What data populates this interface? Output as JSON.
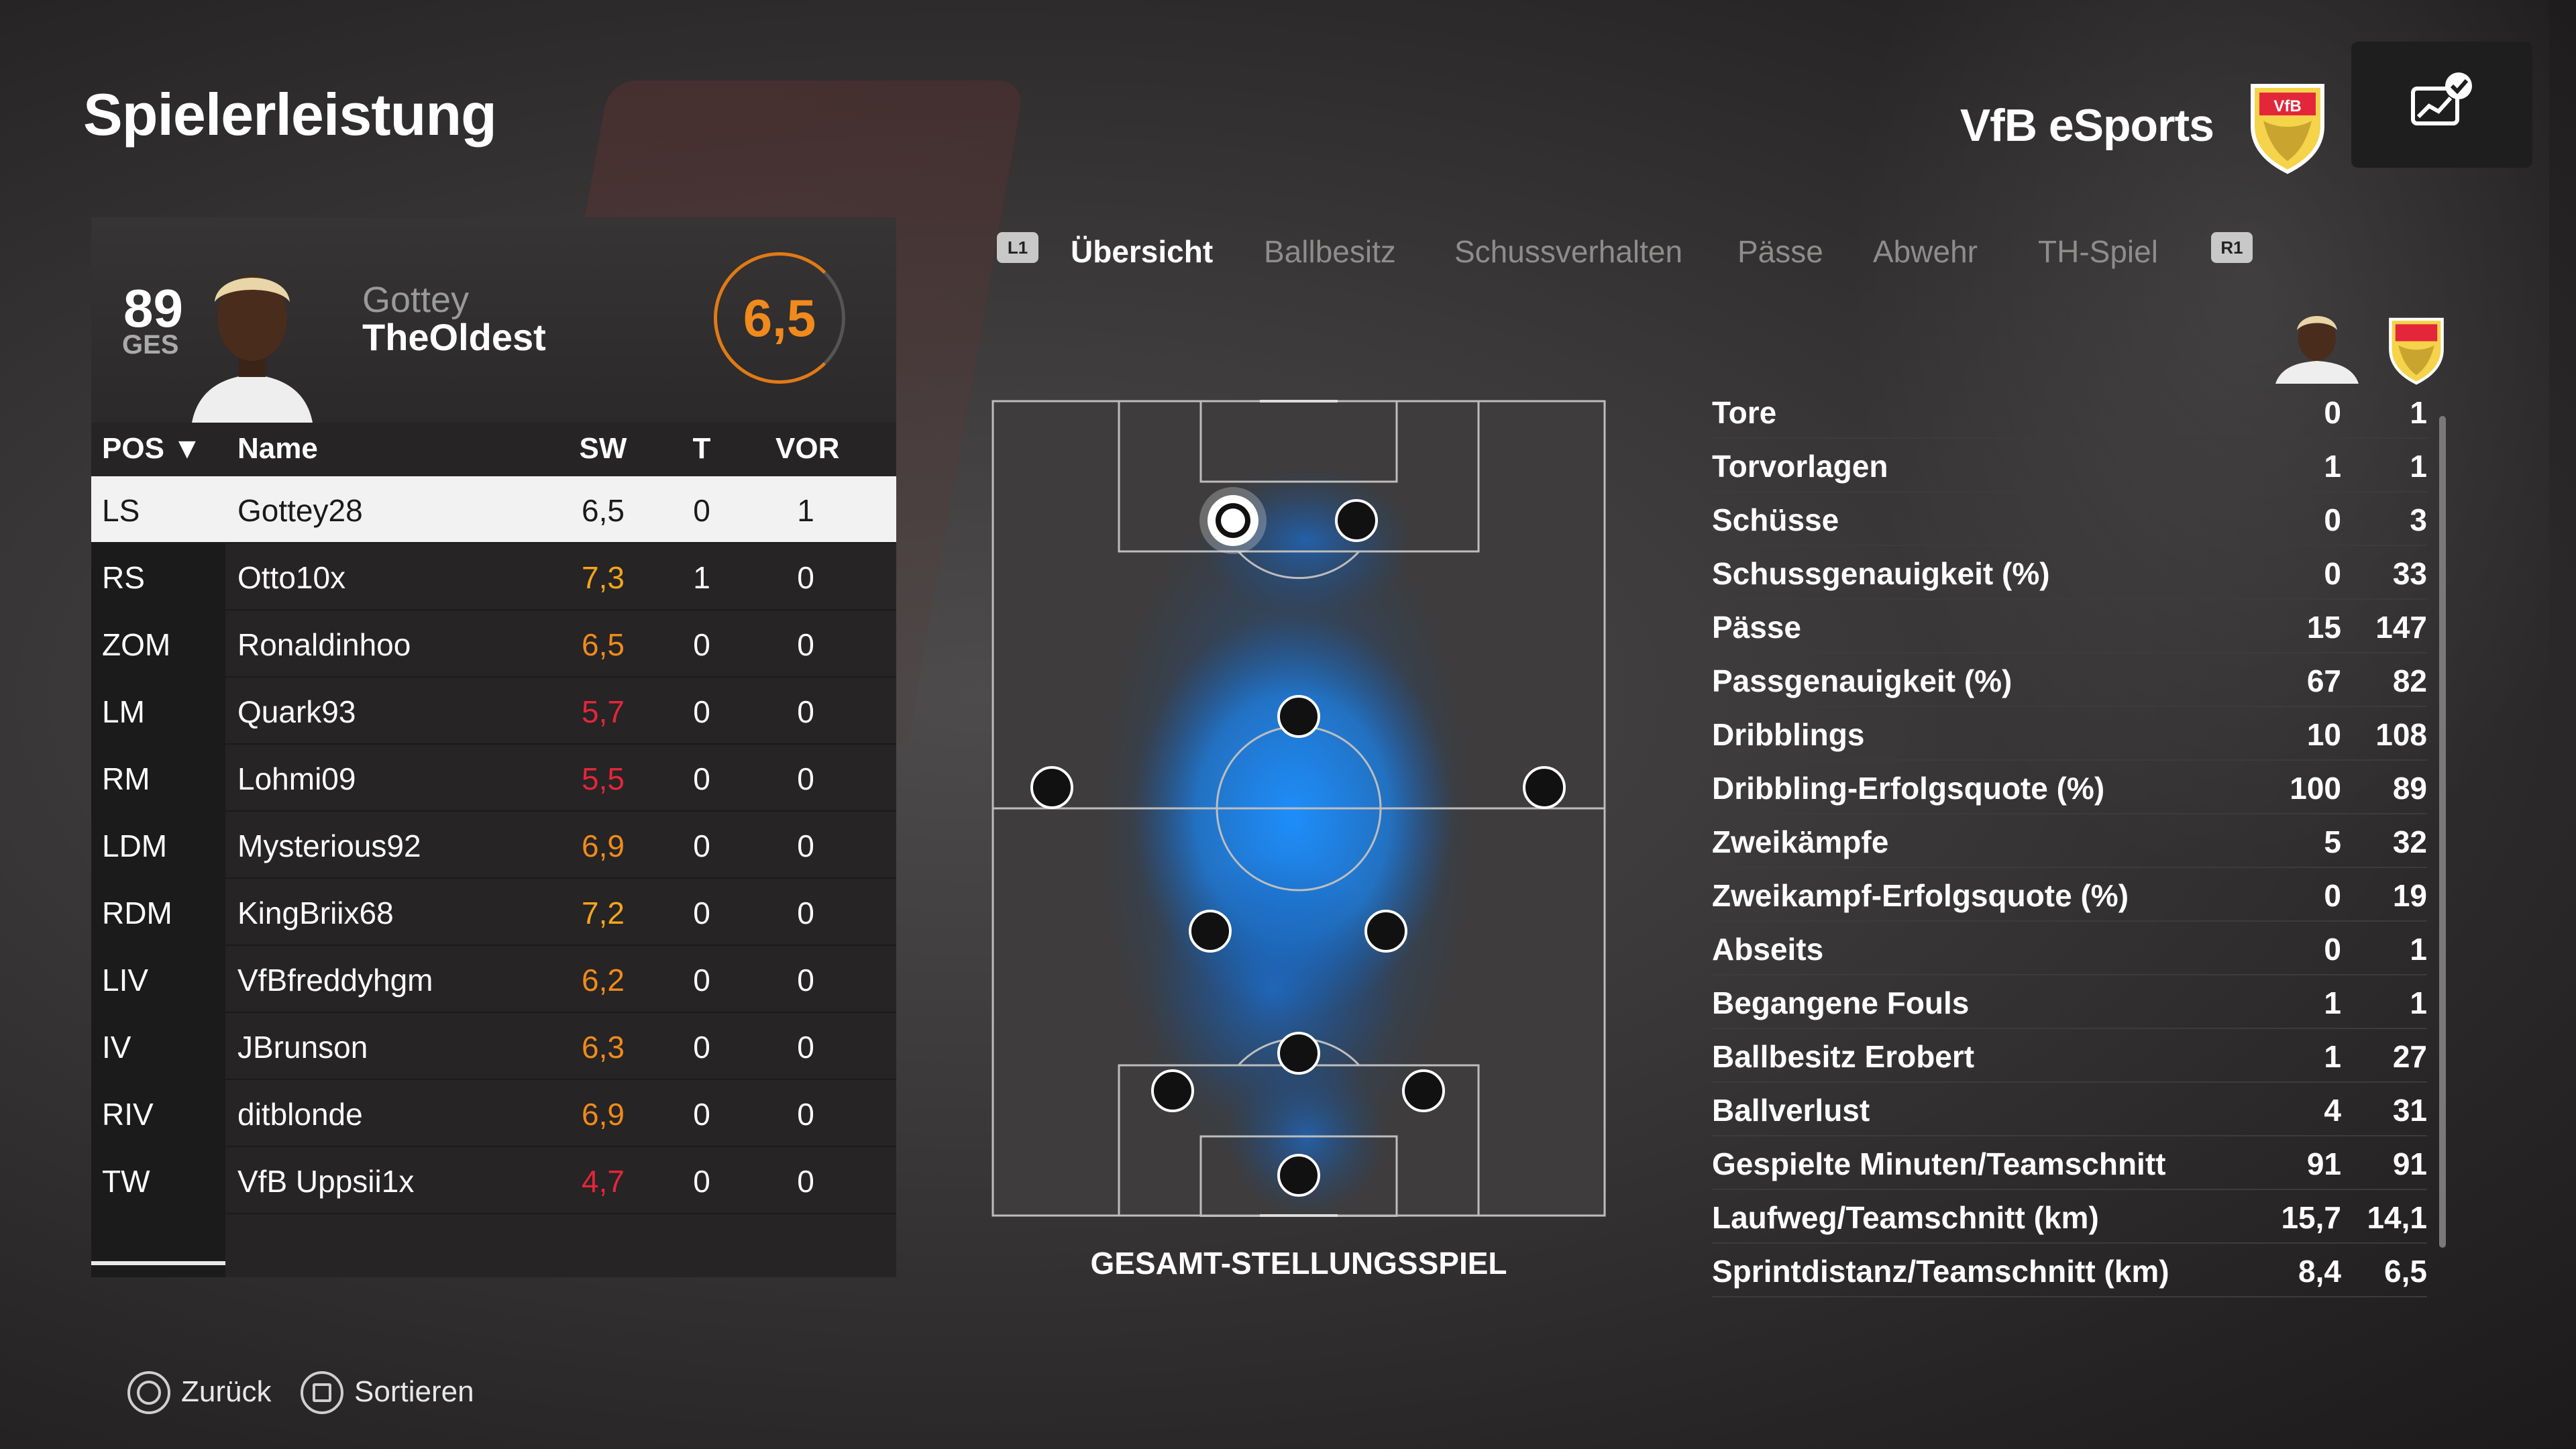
{
  "page": {
    "title": "Spielerleistung"
  },
  "team": {
    "name": "VfB eSports",
    "crest_icon": "vfb-crest-icon",
    "action_icon": "chart-check-icon"
  },
  "player": {
    "overall": "89",
    "overall_label": "GES",
    "first_name": "Gottey",
    "last_name": "TheOldest",
    "rating": "6,5"
  },
  "table": {
    "headers": {
      "pos": "POS",
      "name": "Name",
      "sw": "SW",
      "t": "T",
      "vor": "VOR"
    },
    "rows": [
      {
        "pos": "LS",
        "name": "Gottey28",
        "sw": "6,5",
        "t": "0",
        "vor": "1",
        "color": "#1a1a1a"
      },
      {
        "pos": "RS",
        "name": "Otto10x",
        "sw": "7,3",
        "t": "1",
        "vor": "0",
        "color": "#f4a51c"
      },
      {
        "pos": "ZOM",
        "name": "Ronaldinhoo",
        "sw": "6,5",
        "t": "0",
        "vor": "0",
        "color": "#f08a1c"
      },
      {
        "pos": "LM",
        "name": "Quark93",
        "sw": "5,7",
        "t": "0",
        "vor": "0",
        "color": "#e3263a"
      },
      {
        "pos": "RM",
        "name": "Lohmi09",
        "sw": "5,5",
        "t": "0",
        "vor": "0",
        "color": "#e3263a"
      },
      {
        "pos": "LDM",
        "name": "Mysterious92",
        "sw": "6,9",
        "t": "0",
        "vor": "0",
        "color": "#f08a1c"
      },
      {
        "pos": "RDM",
        "name": "KingBriix68",
        "sw": "7,2",
        "t": "0",
        "vor": "0",
        "color": "#f4a51c"
      },
      {
        "pos": "LIV",
        "name": "VfBfreddyhgm",
        "sw": "6,2",
        "t": "0",
        "vor": "0",
        "color": "#f08a1c"
      },
      {
        "pos": "IV",
        "name": "JBrunson",
        "sw": "6,3",
        "t": "0",
        "vor": "0",
        "color": "#f08a1c"
      },
      {
        "pos": "RIV",
        "name": "ditblonde",
        "sw": "6,9",
        "t": "0",
        "vor": "0",
        "color": "#f08a1c"
      },
      {
        "pos": "TW",
        "name": "VfB Uppsii1x",
        "sw": "4,7",
        "t": "0",
        "vor": "0",
        "color": "#e3263a"
      }
    ]
  },
  "tabs": {
    "left_button": "L1",
    "right_button": "R1",
    "items": [
      {
        "label": "Übersicht",
        "active": true
      },
      {
        "label": "Ballbesitz",
        "active": false
      },
      {
        "label": "Schussverhalten",
        "active": false
      },
      {
        "label": "Pässe",
        "active": false
      },
      {
        "label": "Abwehr",
        "active": false
      },
      {
        "label": "TH-Spiel",
        "active": false
      }
    ]
  },
  "pitch": {
    "label": "GESAMT-STELLUNGSSPIEL",
    "heat_color": "#1e90ff"
  },
  "stats": {
    "rows": [
      {
        "label": "Tore",
        "player": "0",
        "team": "1"
      },
      {
        "label": "Torvorlagen",
        "player": "1",
        "team": "1"
      },
      {
        "label": "Schüsse",
        "player": "0",
        "team": "3"
      },
      {
        "label": "Schussgenauigkeit (%)",
        "player": "0",
        "team": "33"
      },
      {
        "label": "Pässe",
        "player": "15",
        "team": "147"
      },
      {
        "label": "Passgenauigkeit (%)",
        "player": "67",
        "team": "82"
      },
      {
        "label": "Dribblings",
        "player": "10",
        "team": "108"
      },
      {
        "label": "Dribbling-Erfolgsquote (%)",
        "player": "100",
        "team": "89"
      },
      {
        "label": "Zweikämpfe",
        "player": "5",
        "team": "32"
      },
      {
        "label": "Zweikampf-Erfolgsquote (%)",
        "player": "0",
        "team": "19"
      },
      {
        "label": "Abseits",
        "player": "0",
        "team": "1"
      },
      {
        "label": "Begangene Fouls",
        "player": "1",
        "team": "1"
      },
      {
        "label": "Ballbesitz Erobert",
        "player": "1",
        "team": "27"
      },
      {
        "label": "Ballverlust",
        "player": "4",
        "team": "31"
      },
      {
        "label": "Gespielte Minuten/Teamschnitt",
        "player": "91",
        "team": "91"
      },
      {
        "label": "Laufweg/Teamschnitt (km)",
        "player": "15,7",
        "team": "14,1"
      },
      {
        "label": "Sprintdistanz/Teamschnitt (km)",
        "player": "8,4",
        "team": "6,5"
      }
    ]
  },
  "footer": {
    "back_label": "Zurück",
    "sort_label": "Sortieren"
  }
}
